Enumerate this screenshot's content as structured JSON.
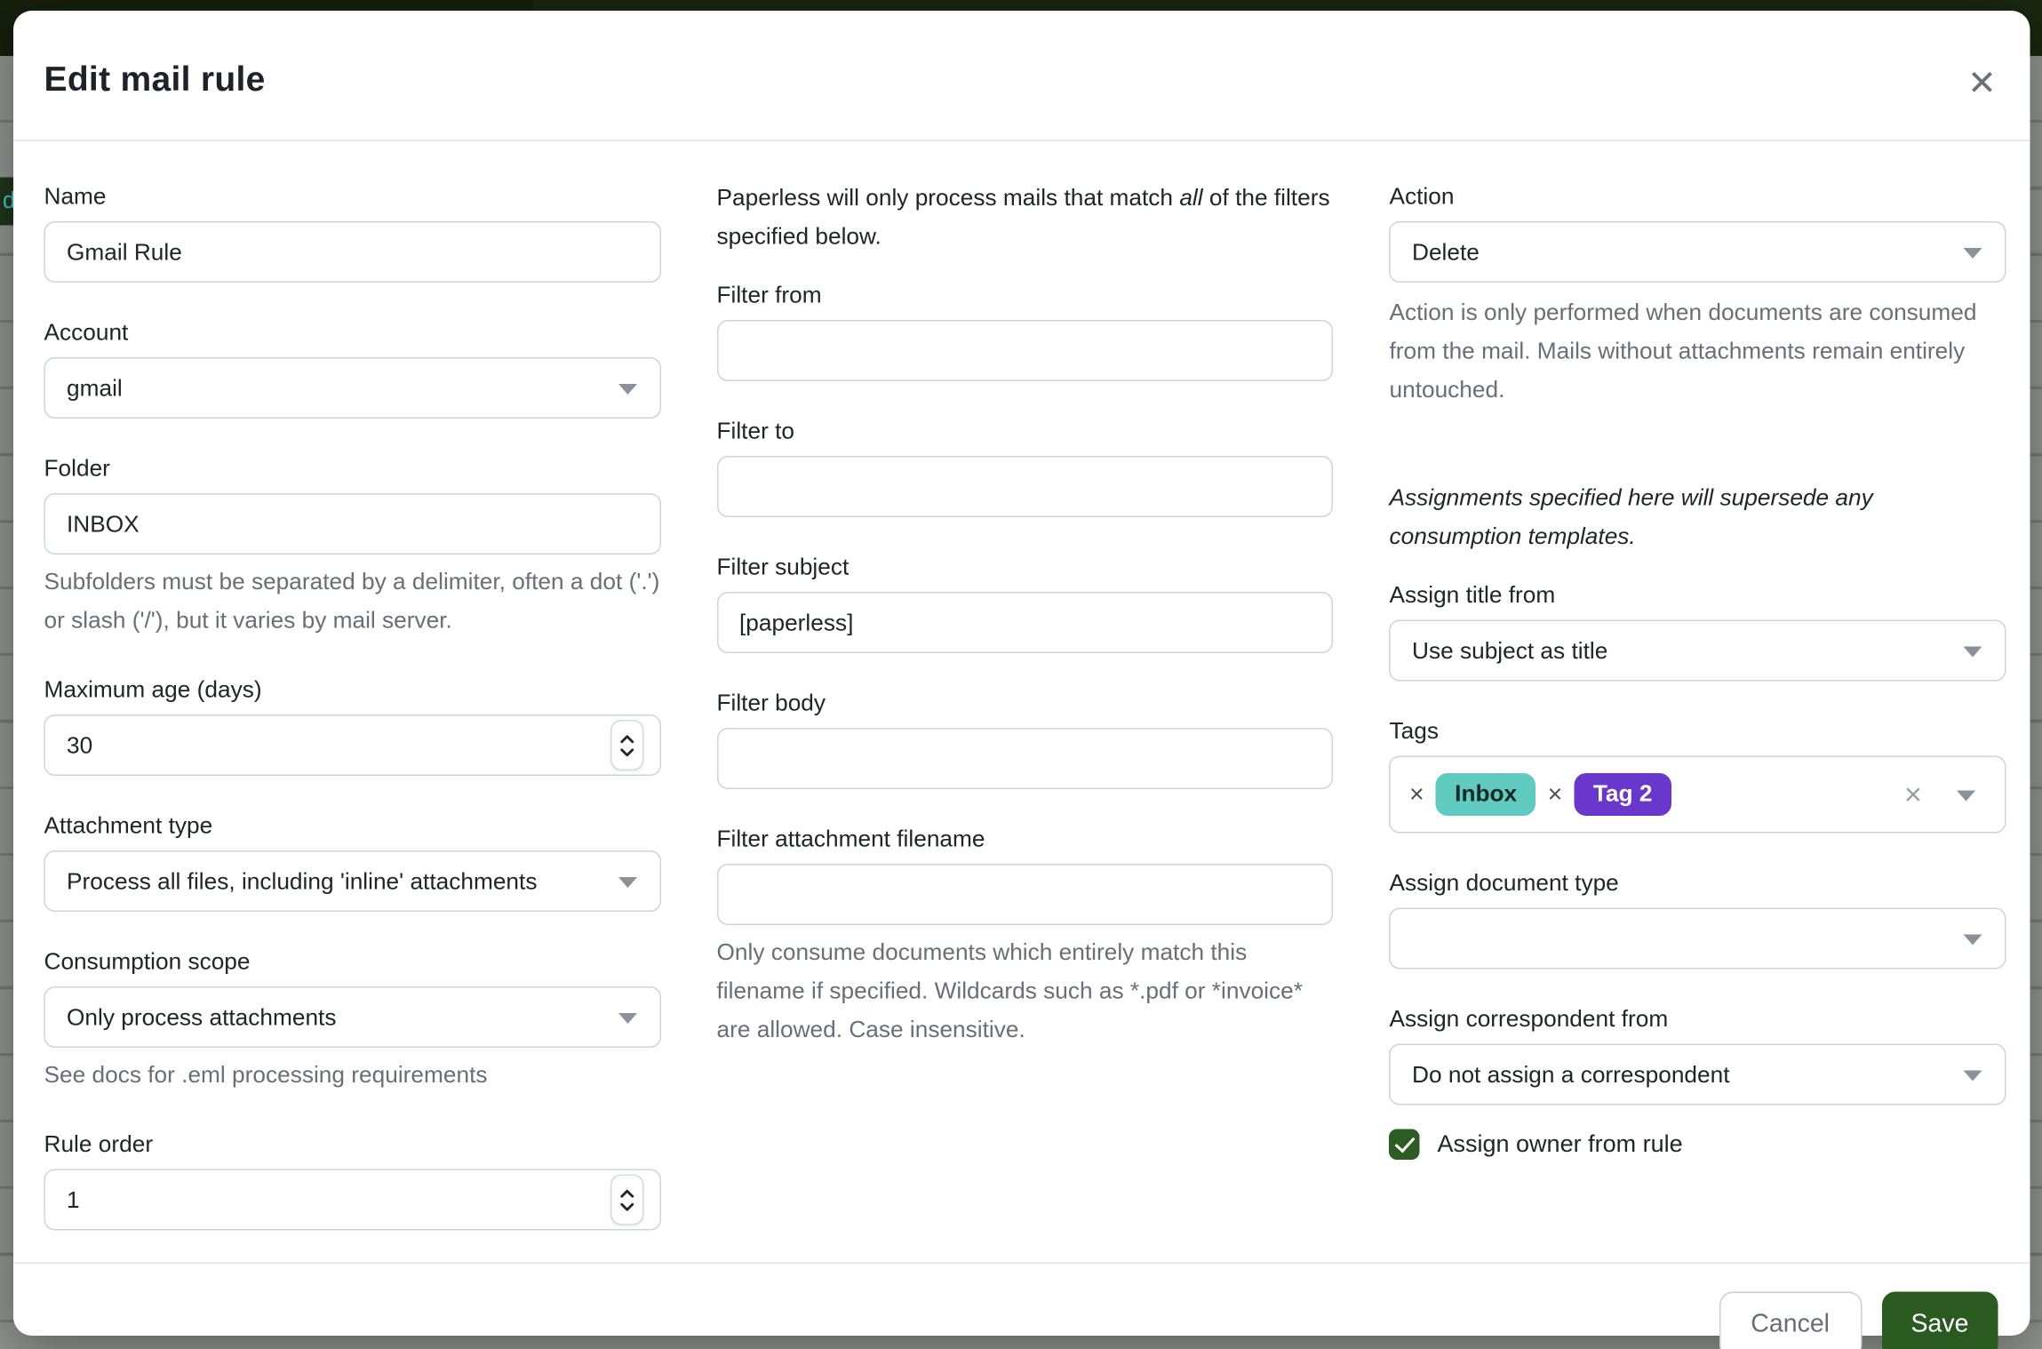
{
  "backdrop": {
    "glimpse_text": "d",
    "header_color": "#19260f",
    "page_color": "#8f948f"
  },
  "modal": {
    "title": "Edit mail rule",
    "close_icon": "✕"
  },
  "left": {
    "name": {
      "label": "Name",
      "value": "Gmail Rule"
    },
    "account": {
      "label": "Account",
      "value": "gmail"
    },
    "folder": {
      "label": "Folder",
      "value": "INBOX",
      "hint": "Subfolders must be separated by a delimiter, often a dot ('.') or slash ('/'), but it varies by mail server."
    },
    "max_age": {
      "label": "Maximum age (days)",
      "value": "30"
    },
    "attachment_type": {
      "label": "Attachment type",
      "value": "Process all files, including 'inline' attachments"
    },
    "consumption_scope": {
      "label": "Consumption scope",
      "value": "Only process attachments",
      "hint": "See docs for .eml processing requirements"
    },
    "rule_order": {
      "label": "Rule order",
      "value": "1"
    }
  },
  "middle": {
    "intro_pre": "Paperless will only process mails that match ",
    "intro_italic": "all",
    "intro_mid": " of the filters",
    "intro_line2": "specified below.",
    "filter_from": {
      "label": "Filter from",
      "value": ""
    },
    "filter_to": {
      "label": "Filter to",
      "value": ""
    },
    "filter_subject": {
      "label": "Filter subject",
      "value": "[paperless]"
    },
    "filter_body": {
      "label": "Filter body",
      "value": ""
    },
    "filter_attachment_filename": {
      "label": "Filter attachment filename",
      "value": "",
      "hint": "Only consume documents which entirely match this filename if specified. Wildcards such as *.pdf or *invoice* are allowed. Case insensitive."
    }
  },
  "right": {
    "action": {
      "label": "Action",
      "value": "Delete",
      "hint": "Action is only performed when documents are consumed from the mail. Mails without attachments remain entirely untouched."
    },
    "assignments_note": "Assignments specified here will supersede any consumption templates.",
    "assign_title": {
      "label": "Assign title from",
      "value": "Use subject as title"
    },
    "tags": {
      "label": "Tags",
      "remove_icon": "×",
      "clear_icon": "×",
      "chips": [
        {
          "name": "Inbox",
          "color": "#62cbc1",
          "text_color": "#152a26"
        },
        {
          "name": "Tag 2",
          "color": "#6937cb",
          "text_color": "#ffffff"
        }
      ]
    },
    "assign_doc_type": {
      "label": "Assign document type",
      "value": ""
    },
    "assign_correspondent": {
      "label": "Assign correspondent from",
      "value": "Do not assign a correspondent"
    },
    "assign_owner": {
      "label": "Assign owner from rule",
      "checked": true
    }
  },
  "footer": {
    "cancel": "Cancel",
    "save": "Save"
  },
  "colors": {
    "save_green": "#2b5a20",
    "checkbox_green": "#2d5b24",
    "tag_teal": "#62cbc1",
    "tag_purple": "#6937cb"
  }
}
